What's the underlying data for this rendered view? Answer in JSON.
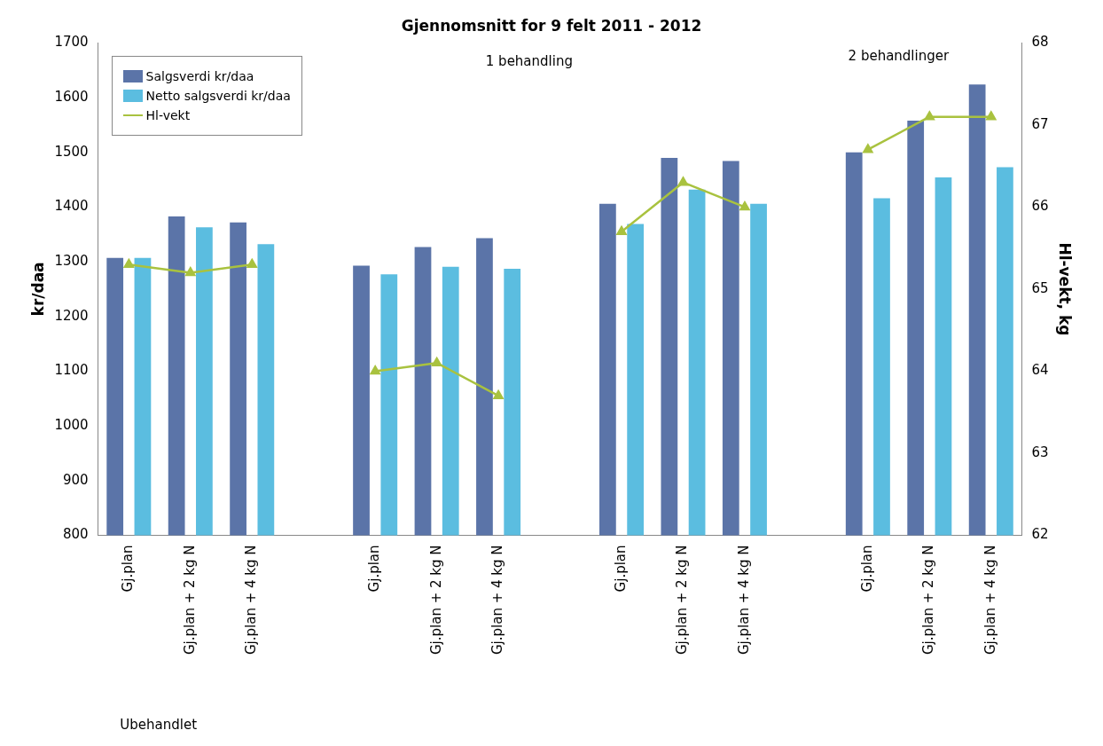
{
  "chart_data": {
    "type": "bar",
    "title": "Gjennomsnitt for 9 felt 2011 - 2012",
    "categories": [
      "Gj.plan",
      "Gj.plan + 2 kg N",
      "Gj.plan + 4 kg N",
      null,
      "Gj.plan",
      "Gj.plan + 2 kg N",
      "Gj.plan + 4 kg N",
      null,
      "Gj.plan",
      "Gj.plan + 2 kg N",
      "Gj.plan + 4 kg N",
      null,
      "Gj.plan",
      "Gj.plan + 2 kg N",
      "Gj.plan + 4 kg N"
    ],
    "series": [
      {
        "name": "Salgsverdi kr/daa",
        "color": "#5b74a8",
        "values": [
          1307,
          1383,
          1372,
          null,
          1293,
          1327,
          1343,
          null,
          1406,
          1490,
          1484,
          null,
          1500,
          1558,
          1624
        ]
      },
      {
        "name": "Netto salgsverdi kr/daa",
        "color": "#5bbde0",
        "values": [
          1307,
          1363,
          1332,
          null,
          1277,
          1291,
          1287,
          null,
          1369,
          1432,
          1406,
          null,
          1416,
          1454,
          1473
        ]
      },
      {
        "name": "Hl-vekt",
        "type": "line",
        "axis": "y2",
        "color": "#a9c23f",
        "marker": "triangle",
        "values": [
          65.3,
          65.2,
          65.3,
          null,
          64.0,
          64.1,
          63.7,
          null,
          65.7,
          66.3,
          66.0,
          null,
          66.7,
          67.1,
          67.1
        ]
      }
    ],
    "ylabel": "kr/daa",
    "y2label": "Hl-vekt, kg",
    "ylim": [
      800,
      1700
    ],
    "yticks": [
      800,
      900,
      1000,
      1100,
      1200,
      1300,
      1400,
      1500,
      1600,
      1700
    ],
    "y2lim": [
      62,
      68
    ],
    "y2ticks": [
      62,
      63,
      64,
      65,
      66,
      67,
      68
    ],
    "grid": false,
    "legend": "top left",
    "annotations": [
      "1 behandling",
      "2 behandlinger",
      "Ubehandlet"
    ]
  }
}
